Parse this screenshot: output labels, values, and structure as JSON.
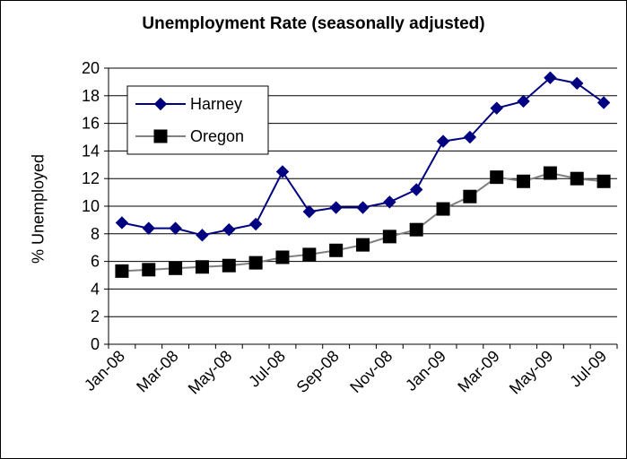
{
  "chart_data": {
    "type": "line",
    "title": "Unemployment Rate (seasonally adjusted)",
    "ylabel": "% Unemployed",
    "xlabel": "",
    "ylim": [
      0,
      20
    ],
    "yticks": [
      0,
      2,
      4,
      6,
      8,
      10,
      12,
      14,
      16,
      18,
      20
    ],
    "grid": true,
    "legend_position": "top-left",
    "categories": [
      "Jan-08",
      "Feb-08",
      "Mar-08",
      "Apr-08",
      "May-08",
      "Jun-08",
      "Jul-08",
      "Aug-08",
      "Sep-08",
      "Oct-08",
      "Nov-08",
      "Dec-08",
      "Jan-09",
      "Feb-09",
      "Mar-09",
      "Apr-09",
      "May-09",
      "Jun-09",
      "Jul-09"
    ],
    "tick_labels": [
      "Jan-08",
      "Mar-08",
      "May-08",
      "Jul-08",
      "Sep-08",
      "Nov-08",
      "Jan-09",
      "Mar-09",
      "May-09",
      "Jul-09"
    ],
    "series": [
      {
        "name": "Harney",
        "color": "#000080",
        "marker": "diamond",
        "values": [
          8.8,
          8.4,
          8.4,
          7.9,
          8.3,
          8.7,
          12.5,
          9.6,
          9.9,
          9.9,
          10.3,
          11.2,
          14.7,
          15.0,
          17.1,
          17.6,
          19.3,
          18.9,
          17.5
        ]
      },
      {
        "name": "Oregon",
        "color": "#808080",
        "marker": "square",
        "values": [
          5.3,
          5.4,
          5.5,
          5.6,
          5.7,
          5.9,
          6.3,
          6.5,
          6.8,
          7.2,
          7.8,
          8.3,
          9.8,
          10.7,
          12.1,
          11.8,
          12.4,
          12.0,
          11.8
        ]
      }
    ]
  }
}
